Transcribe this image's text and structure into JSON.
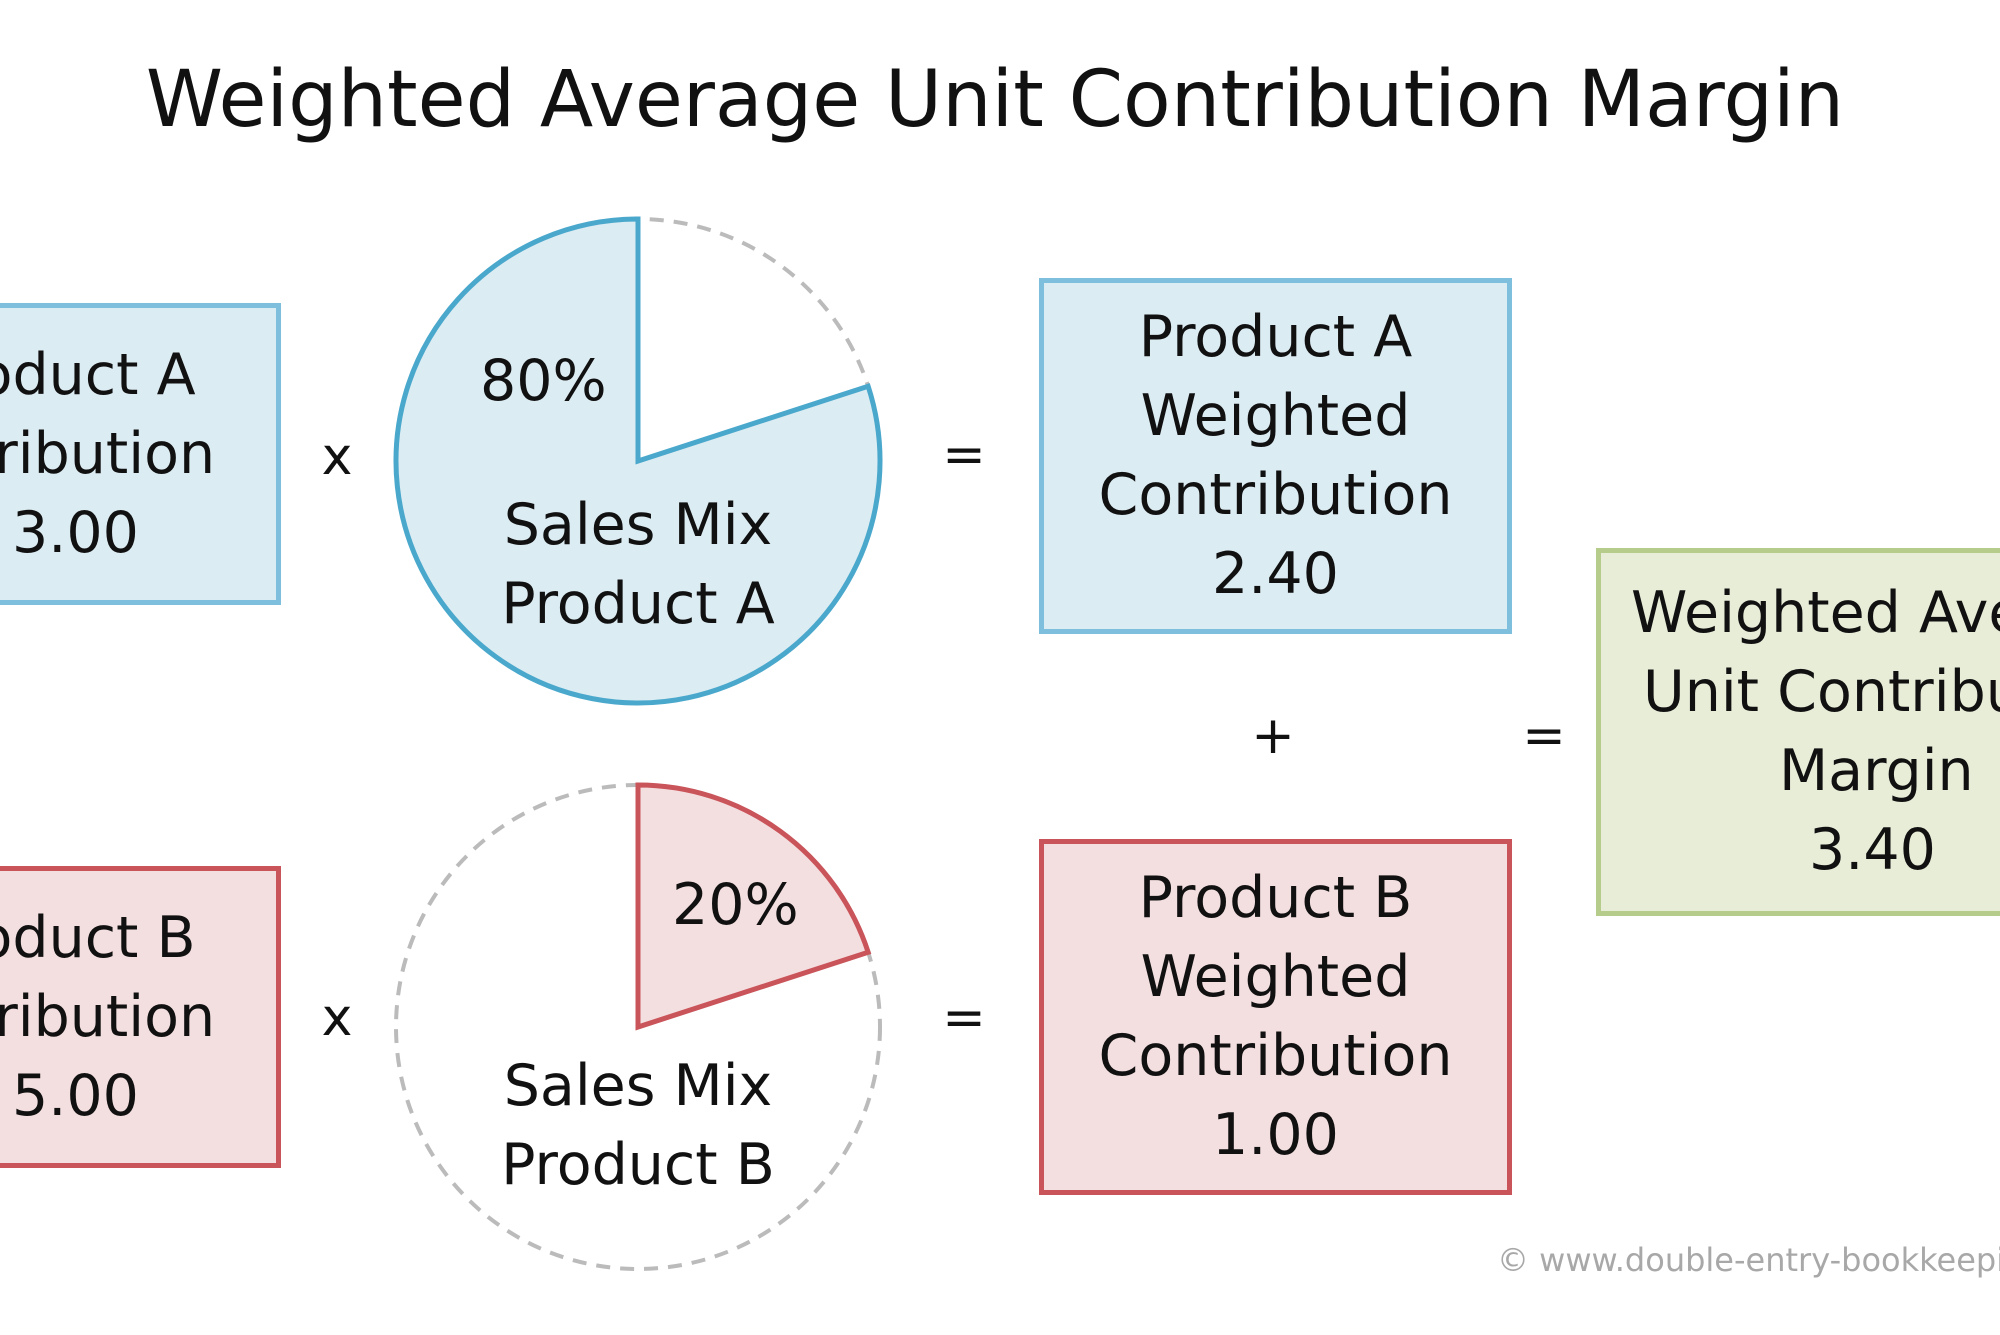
{
  "title": "Weighted Average Unit Contribution Margin",
  "product_a": {
    "unit_contribution": [
      "roduct A",
      "ntribution",
      "3.00"
    ],
    "sales_mix_percent": "80%",
    "sales_mix_share": 0.8,
    "sales_mix_label": [
      "Sales Mix",
      "Product A"
    ],
    "weighted_contribution": [
      "Product A",
      "Weighted",
      "Contribution",
      "2.40"
    ]
  },
  "product_b": {
    "unit_contribution": [
      "roduct B",
      "ntribution",
      "5.00"
    ],
    "sales_mix_percent": "20%",
    "sales_mix_share": 0.2,
    "sales_mix_label": [
      "Sales Mix",
      "Product B"
    ],
    "weighted_contribution": [
      "Product B",
      "Weighted",
      "Contribution",
      "1.00"
    ]
  },
  "result": [
    "Weighted Ave",
    "Unit Contribu",
    "Margin",
    "3.40"
  ],
  "operators": {
    "multiply": "x",
    "equals": "=",
    "plus": "+"
  },
  "credit": "© www.double-entry-bookkeepin",
  "colors": {
    "product_a_fill": "#dcecf3",
    "product_a_border": "#7dbfdc",
    "product_a_pie_border": "#4aa8cc",
    "product_b_fill": "#f4dfe0",
    "product_b_border": "#c9545a",
    "result_fill": "#e8edd8",
    "result_border": "#b6cc8b",
    "dashed_outline": "#bbbbbb"
  }
}
